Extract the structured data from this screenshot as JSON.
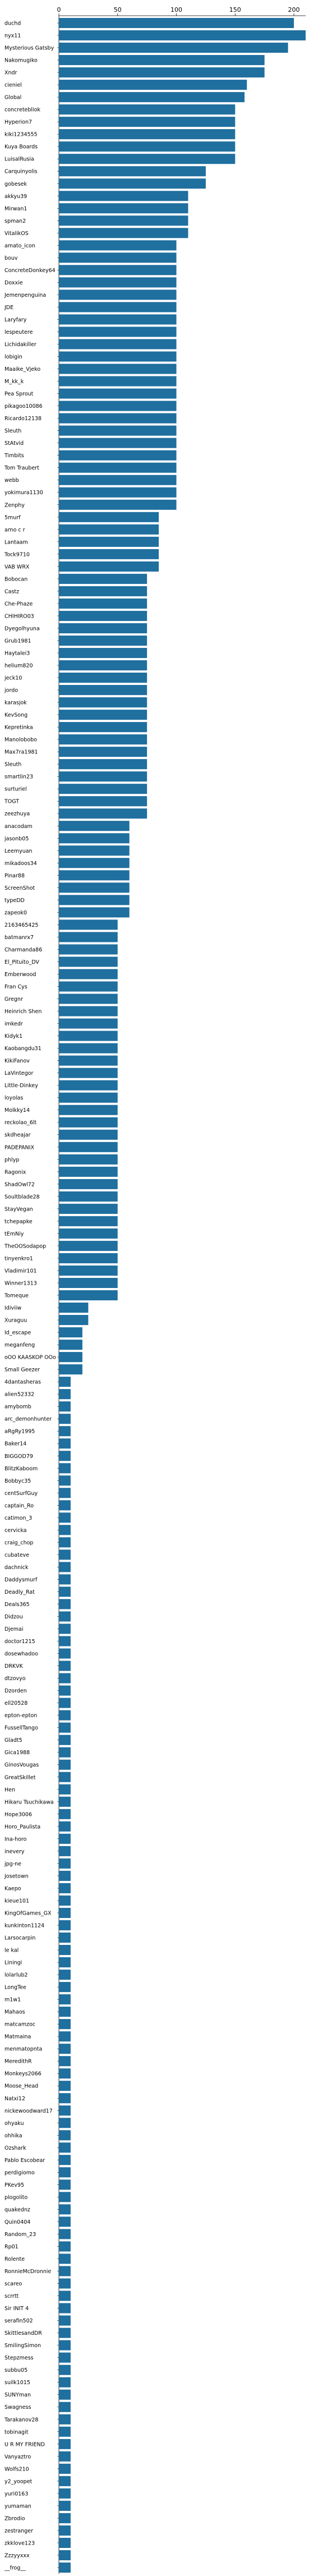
{
  "chart_data": {
    "type": "bar",
    "orientation": "horizontal",
    "title": "",
    "xlabel": "",
    "ylabel": "",
    "xlim": [
      0,
      210
    ],
    "x_ticks": [
      0,
      50,
      100,
      150,
      200
    ],
    "x_tick_labels": [
      "0",
      "50",
      "100",
      "150",
      "200"
    ],
    "x_axis_position": "top",
    "grid": false,
    "bar_color": "#1f6f9f",
    "categories": [
      "duchd",
      "nyx11",
      "Mysterious Gatsby",
      "Nakomugiko",
      "Xndr",
      "cieniel",
      "Global",
      "concretebliok",
      "Hyperion7",
      "kiki1234555",
      "Kuya Boards",
      "LuisalRusia",
      "Carquinyolis",
      "gobesek",
      "akkyu39",
      "Mirwan1",
      "spman2",
      "VitalikOS",
      "amato_icon",
      "bouv",
      "ConcreteDonkey64",
      "Doxxie",
      "Jemenpenguina",
      "JDE",
      "Laryfary",
      "lespeutere",
      "Lichidakiller",
      "lobigin",
      "Maaike_Vjeko",
      "M_kk_k",
      "Pea Sprout",
      "pikagoo10086",
      "Ricardo12138",
      "Sleuth",
      "StAtvid",
      "Timbits",
      "Tom Traubert",
      "webb",
      "yokimura1130",
      "Zenphy",
      "5murf",
      "arno c r",
      "Lantaam",
      "Tock9710",
      "VAB WRX",
      "Bobocan",
      "Castz",
      "Che-Phaze",
      "CHIHIRO03",
      "Dyegolhyuna",
      "Grub1981",
      "Haytalei3",
      "helium820",
      "jeck10",
      "jordo",
      "karasjok",
      "KevSong",
      "Kepretinka",
      "Manolobobo",
      "Max7ra1981",
      "Sleuth",
      "smartlin23",
      "surturiel",
      "TOGT",
      "zeezhuya",
      "anacodam",
      "jasonb05",
      "Leemyuan",
      "mikadoos34",
      "Pinar88",
      "ScreenShot",
      "typeDD",
      "zapeok0",
      "2163465425",
      "batmanrx7",
      "Charmanda86",
      "El_Pituito_DV",
      "Emberwood",
      "Fran Cys",
      "Gregnr",
      "Heinrich Shen",
      "imkedr",
      "Kidyk1",
      "Kaobangdu31",
      "KikiFanov",
      "LaVintegor",
      "Little-Dinkey",
      "loyolas",
      "Molkky14",
      "reckolao_6lt",
      "skdheajar",
      "PADEPANIX",
      "phlyp",
      "Ragonix",
      "ShadOwl72",
      "Soultblade28",
      "StayVegan",
      "tchepapke",
      "tEmNiy",
      "TheOOSodapop",
      "tinyenkro1",
      "Vladimir101",
      "Winner1313",
      "Tomeque",
      "Idiviiw",
      "Xuraguu",
      "Id_escape",
      "meganfeng",
      "oOO KAASKOP OOo",
      "Small Geezer",
      "4dantasheras",
      "alien52332",
      "amybomb",
      "arc_demonhunter",
      "aRgRy1995",
      "Baker14",
      "BIGGOD79",
      "BlitzKaboom",
      "Bobbyc35",
      "centSurfGuy",
      "captain_Ro",
      "catimon_3",
      "cervicka",
      "craig_chop",
      "cubateve",
      "dachnick",
      "Daddysmurf",
      "Deadly_Rat",
      "Deals365",
      "Didzou",
      "Djemai",
      "doctor1215",
      "dosewhadoo",
      "DRKVK",
      "dtzovyo",
      "Dzorden",
      "ell20528",
      "epton-epton",
      "FussellTango",
      "Gladt5",
      "Gica1988",
      "GinosVougas",
      "GreatSkillet",
      "Hen",
      "Hikaru Tsuchikawa",
      "Hope3006",
      "Horo_Paulista",
      "Ina-horo",
      "inevery",
      "jpg-ne",
      "Josetown",
      "Kaepo",
      "kieue101",
      "KingOfGames_GX",
      "kunkinton1124",
      "Larsocarpin",
      "le kal",
      "Liningi",
      "lolarlub2",
      "LongTee",
      "m1w1",
      "Mahaos",
      "matcamzoc",
      "Matmaina",
      "menmatopnta",
      "MeredithR",
      "Monkeys2066",
      "Moose_Head",
      "Natxi12",
      "nickewoodward17",
      "ohyaku",
      "ohhika",
      "Ozshark",
      "Pablo Escobear",
      "perdigiomo",
      "PKev95",
      "plogolito",
      "quakednz",
      "Quin0404",
      "Random_23",
      "Rp01",
      "Rolente",
      "RonnieMcDronnie",
      "scareo",
      "scrrtt",
      "Sir INIT 4",
      "serafin502",
      "SkittlesandDR",
      "SmilingSimon",
      "Stepzmess",
      "subbu05",
      "suilk1015",
      "SUNYman",
      "Swagness",
      "Tarakanov28",
      "tobinagit",
      "U R MY FRIEND",
      "Vanyaztro",
      "Wolfs210",
      "y2_yoopet",
      "yuri0163",
      "yumaman",
      "Zbrodio",
      "zestranger",
      "zkklove123",
      "Zzzyyxxx",
      "__frog__"
    ],
    "values": [
      200,
      210,
      195,
      175,
      175,
      160,
      158,
      150,
      150,
      150,
      150,
      150,
      125,
      125,
      110,
      110,
      110,
      110,
      100,
      100,
      100,
      100,
      100,
      100,
      100,
      100,
      100,
      100,
      100,
      100,
      100,
      100,
      100,
      100,
      100,
      100,
      100,
      100,
      100,
      100,
      85,
      85,
      85,
      85,
      85,
      75,
      75,
      75,
      75,
      75,
      75,
      75,
      75,
      75,
      75,
      75,
      75,
      75,
      75,
      75,
      75,
      75,
      75,
      75,
      75,
      60,
      60,
      60,
      60,
      60,
      60,
      60,
      60,
      50,
      50,
      50,
      50,
      50,
      50,
      50,
      50,
      50,
      50,
      50,
      50,
      50,
      50,
      50,
      50,
      50,
      50,
      50,
      50,
      50,
      50,
      50,
      50,
      50,
      50,
      50,
      50,
      50,
      50,
      50,
      25,
      25,
      20,
      20,
      20,
      20,
      10,
      10,
      10,
      10,
      10,
      10,
      10,
      10,
      10,
      10,
      10,
      10,
      10,
      10,
      10,
      10,
      10,
      10,
      10,
      10,
      10,
      10,
      10,
      10,
      10,
      10,
      10,
      10,
      10,
      10,
      10,
      10,
      10,
      10,
      10,
      10,
      10,
      10,
      10,
      10,
      10,
      10,
      10,
      10,
      10,
      10,
      10,
      10,
      10,
      10,
      10,
      10,
      10,
      10,
      10,
      10,
      10,
      10,
      10,
      10,
      10,
      10,
      10,
      10,
      10,
      10,
      10,
      10,
      10,
      10,
      10,
      10,
      10,
      10,
      10,
      10,
      10,
      10,
      10,
      10,
      10,
      10,
      10,
      10,
      10,
      10,
      10,
      10,
      10,
      10,
      10,
      10,
      10,
      10,
      10,
      10,
      10
    ]
  }
}
